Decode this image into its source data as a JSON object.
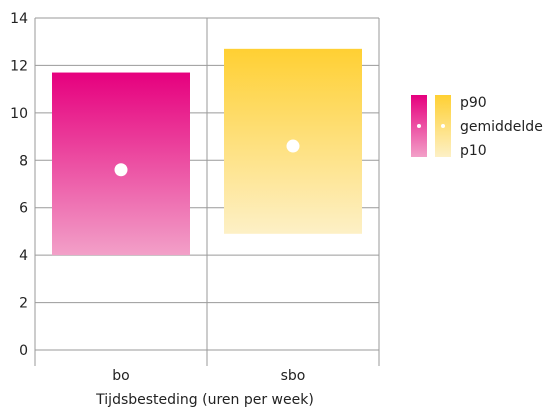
{
  "chart_data": {
    "type": "bar",
    "xlabel": "Tijdsbesteding (uren per week)",
    "ylabel": "",
    "ylim": [
      0,
      14
    ],
    "yticks": [
      0,
      2,
      4,
      6,
      8,
      10,
      12,
      14
    ],
    "grid": true,
    "categories": [
      "bo",
      "sbo"
    ],
    "series": [
      {
        "category": "bo",
        "p10": 4.0,
        "p90": 11.7,
        "mean": 7.6,
        "color_top": "#e6007e",
        "color_bottom": "#f2a0c8"
      },
      {
        "category": "sbo",
        "p10": 4.9,
        "p90": 12.7,
        "mean": 8.6,
        "color_top": "#ffd033",
        "color_bottom": "#fdf0c6"
      }
    ],
    "legend": {
      "placement": "right",
      "entries": [
        "p90",
        "gemiddelde",
        "p10"
      ]
    }
  }
}
